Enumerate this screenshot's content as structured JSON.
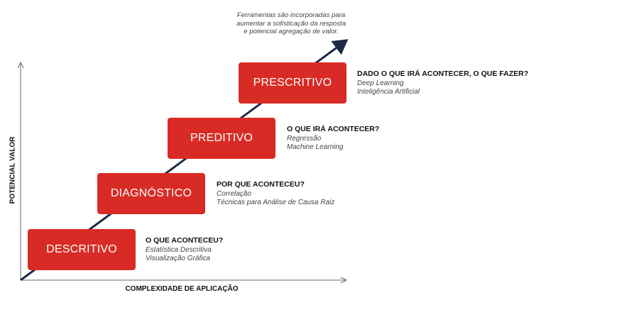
{
  "note": "Ferramentas são incorporadas para aumentar a sofisticação da resposta e potencial agregação de valor.",
  "axes": {
    "y_label": "POTENCIAL VALOR",
    "x_label": "COMPLEXIDADE DE APLICAÇÃO"
  },
  "stages": [
    {
      "name": "DESCRITIVO",
      "question": "O QUE ACONTECEU?",
      "tools": [
        "Estatística Descritiva",
        "Visualização Gráfica"
      ]
    },
    {
      "name": "DIAGNÓSTICO",
      "question": "POR QUE ACONTECEU?",
      "tools": [
        "Correlação",
        "Técnicas para Análise de Causa Raiz"
      ]
    },
    {
      "name": "PREDITIVO",
      "question": "O QUE IRÁ ACONTECER?",
      "tools": [
        "Regressão",
        "Machine Learning"
      ]
    },
    {
      "name": "PRESCRITIVO",
      "question": "DADO O QUE IRÁ ACONTECER, O QUE FAZER?",
      "tools": [
        "Deep Learning",
        "Inteligência Artificial"
      ]
    }
  ],
  "colors": {
    "box": "#d92b25",
    "trend_arrow": "#1b2a47",
    "axis": "#666666"
  }
}
